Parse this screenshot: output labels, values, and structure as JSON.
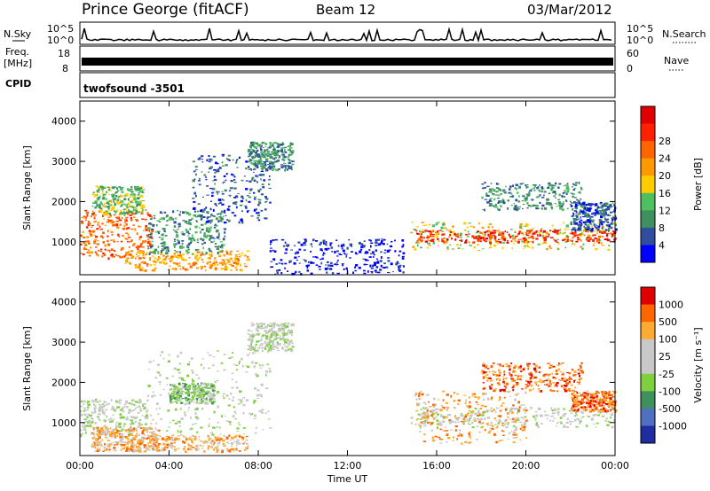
{
  "header": {
    "station": "Prince George (fitACF)",
    "beam": "Beam 12",
    "date": "03/Mar/2012"
  },
  "noise_panel": {
    "left_label": "N.Sky",
    "right_label": "N.Search",
    "tick_top": "10^5",
    "tick_bottom": "10^0"
  },
  "freq_panel": {
    "label_line1": "Freq.",
    "label_line2": "[MHz]",
    "tick_top": "18",
    "tick_bottom": "8",
    "right_tick_top": "60",
    "right_tick_bottom": "0",
    "right_label": "Nave"
  },
  "cpid_panel": {
    "label": "CPID",
    "value": "twofsound -3501"
  },
  "chart_data": [
    {
      "type": "heatmap",
      "name": "power",
      "ylabel": "Slant Range [km]",
      "xlabel": "",
      "x_ticks": [
        "00:00",
        "04:00",
        "08:00",
        "12:00",
        "16:00",
        "20:00",
        "00:00"
      ],
      "y_ticks": [
        1000,
        2000,
        3000,
        4000
      ],
      "ylim": [
        180,
        4500
      ],
      "xlim_hours": [
        0,
        24
      ],
      "colorbar": {
        "label": "Power [dB]",
        "ticks": [
          "4",
          "8",
          "12",
          "16",
          "20",
          "24",
          "28"
        ],
        "colors": [
          "#0000ff",
          "#2f4f9e",
          "#3f8f5f",
          "#4fbf5f",
          "#ffcc00",
          "#ff9900",
          "#ff6600",
          "#ff2200",
          "#e00000"
        ]
      },
      "regions": [
        {
          "t0": 0.0,
          "t1": 3.2,
          "r0": 600,
          "r1": 1800,
          "level": 6
        },
        {
          "t0": 0.5,
          "t1": 2.8,
          "r0": 1700,
          "r1": 2400,
          "level": 3
        },
        {
          "t0": 2.0,
          "t1": 7.5,
          "r0": 300,
          "r1": 800,
          "level": 5
        },
        {
          "t0": 3.0,
          "t1": 6.5,
          "r0": 700,
          "r1": 1800,
          "level": 2
        },
        {
          "t0": 5.0,
          "t1": 8.5,
          "r0": 1500,
          "r1": 3200,
          "level": 1
        },
        {
          "t0": 7.5,
          "t1": 9.5,
          "r0": 2800,
          "r1": 3500,
          "level": 2
        },
        {
          "t0": 8.5,
          "t1": 14.5,
          "r0": 200,
          "r1": 1100,
          "level": 0
        },
        {
          "t0": 14.8,
          "t1": 24.0,
          "r0": 800,
          "r1": 1500,
          "level": 4
        },
        {
          "t0": 15.0,
          "t1": 24.0,
          "r0": 1000,
          "r1": 1300,
          "level": 7
        },
        {
          "t0": 18.0,
          "t1": 22.5,
          "r0": 1800,
          "r1": 2500,
          "level": 2
        },
        {
          "t0": 22.0,
          "t1": 24.0,
          "r0": 1300,
          "r1": 2000,
          "level": 1
        }
      ]
    },
    {
      "type": "heatmap",
      "name": "velocity",
      "ylabel": "Slant Range [km]",
      "xlabel": "Time UT",
      "x_ticks": [
        "00:00",
        "04:00",
        "08:00",
        "12:00",
        "16:00",
        "20:00",
        "00:00"
      ],
      "y_ticks": [
        1000,
        2000,
        3000,
        4000
      ],
      "ylim": [
        180,
        4500
      ],
      "xlim_hours": [
        0,
        24
      ],
      "colorbar": {
        "label": "Velocity [m s⁻¹]",
        "ticks": [
          "1000",
          "500",
          "100",
          "25",
          "-25",
          "-100",
          "-500",
          "-1000"
        ],
        "colors": [
          "#1e2ea0",
          "#4f6fbf",
          "#3f8f5f",
          "#7fcf3f",
          "#c8c8c8",
          "#c8c8c8",
          "#ffaa33",
          "#ff6600",
          "#e00000"
        ]
      },
      "regions": [
        {
          "t0": 0.0,
          "t1": 3.0,
          "r0": 700,
          "r1": 1600,
          "level": 4
        },
        {
          "t0": 0.5,
          "t1": 3.5,
          "r0": 300,
          "r1": 900,
          "level": 6
        },
        {
          "t0": 2.0,
          "t1": 7.5,
          "r0": 300,
          "r1": 700,
          "level": 6
        },
        {
          "t0": 3.0,
          "t1": 8.5,
          "r0": 700,
          "r1": 2800,
          "level": 4
        },
        {
          "t0": 4.0,
          "t1": 6.0,
          "r0": 1500,
          "r1": 2000,
          "level": 3
        },
        {
          "t0": 7.5,
          "t1": 9.5,
          "r0": 2800,
          "r1": 3500,
          "level": 4
        },
        {
          "t0": 14.8,
          "t1": 24.0,
          "r0": 900,
          "r1": 1400,
          "level": 4
        },
        {
          "t0": 15.0,
          "t1": 20.0,
          "r0": 500,
          "r1": 1800,
          "level": 6
        },
        {
          "t0": 18.0,
          "t1": 22.5,
          "r0": 1800,
          "r1": 2500,
          "level": 7
        },
        {
          "t0": 22.0,
          "t1": 24.0,
          "r0": 1300,
          "r1": 1800,
          "level": 7
        }
      ]
    }
  ]
}
